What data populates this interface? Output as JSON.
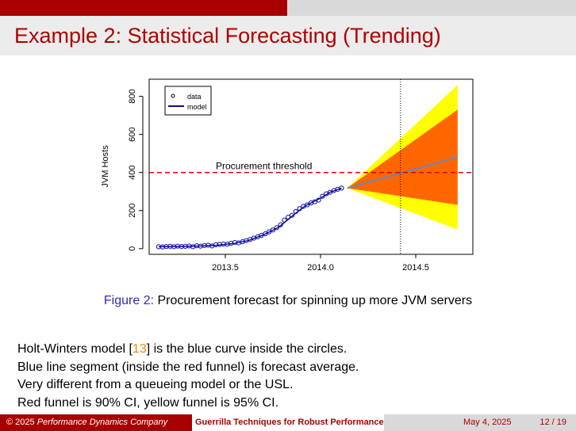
{
  "title": "Example 2: Statistical Forecasting (Trending)",
  "figure": {
    "label": "Figure 2:",
    "caption": "Procurement forecast for spinning up more JVM servers"
  },
  "chart_data": {
    "type": "line",
    "ylabel": "JVM Hosts",
    "xlabel": "",
    "xlim": [
      2013.1,
      2014.8
    ],
    "ylim": [
      -30,
      890
    ],
    "x_ticks": [
      2013.5,
      2014.0,
      2014.5
    ],
    "x_tick_labels": [
      "2013.5",
      "2014.0",
      "2014.5"
    ],
    "y_ticks": [
      0,
      200,
      400,
      600,
      800
    ],
    "y_tick_labels": [
      "0",
      "200",
      "400",
      "600",
      "800"
    ],
    "legend": {
      "position": "top-left",
      "entries": [
        "data",
        "model"
      ]
    },
    "threshold": {
      "value": 400,
      "label": "Procurement threshold",
      "color": "#e00000"
    },
    "vline_x": 2014.42,
    "series": [
      {
        "name": "data",
        "style": "points",
        "color": "#0a0aa0",
        "x": [
          2013.15,
          2013.17,
          2013.19,
          2013.21,
          2013.23,
          2013.25,
          2013.27,
          2013.29,
          2013.31,
          2013.33,
          2013.35,
          2013.37,
          2013.39,
          2013.41,
          2013.43,
          2013.45,
          2013.47,
          2013.49,
          2013.51,
          2013.53,
          2013.55,
          2013.57,
          2013.59,
          2013.61,
          2013.63,
          2013.65,
          2013.67,
          2013.69,
          2013.71,
          2013.73,
          2013.75,
          2013.77,
          2013.79,
          2013.81,
          2013.83,
          2013.85,
          2013.87,
          2013.89,
          2013.91,
          2013.93,
          2013.95,
          2013.97,
          2013.99,
          2014.01,
          2014.03,
          2014.05,
          2014.07,
          2014.09,
          2014.11
        ],
        "y": [
          10,
          9,
          11,
          12,
          10,
          13,
          11,
          12,
          14,
          10,
          15,
          13,
          16,
          18,
          14,
          20,
          22,
          24,
          23,
          28,
          32,
          30,
          36,
          42,
          48,
          55,
          62,
          70,
          78,
          88,
          98,
          110,
          125,
          150,
          165,
          175,
          195,
          210,
          222,
          230,
          240,
          246,
          255,
          275,
          288,
          296,
          305,
          312,
          318
        ]
      },
      {
        "name": "model",
        "style": "line",
        "color": "#0a0aa0",
        "x": [
          2013.15,
          2013.25,
          2013.35,
          2013.45,
          2013.55,
          2013.62,
          2013.7,
          2013.78,
          2013.85,
          2013.92,
          2014.0,
          2014.05,
          2014.11
        ],
        "y": [
          10,
          11,
          13,
          17,
          28,
          42,
          72,
          112,
          170,
          225,
          265,
          296,
          318
        ]
      }
    ],
    "forecast": {
      "x": [
        2014.14,
        2014.72
      ],
      "mean": [
        318,
        480
      ],
      "ci90_lower": [
        318,
        230
      ],
      "ci90_upper": [
        318,
        730
      ],
      "ci95_lower": [
        318,
        100
      ],
      "ci95_upper": [
        318,
        860
      ],
      "mean_color": "#6e84b8",
      "ci90_color": "#ff6600",
      "ci95_color": "#ffff00"
    }
  },
  "body_lines": [
    {
      "before": "Holt-Winters model [",
      "ref": "13",
      "after": "] is the blue curve inside the circles."
    },
    {
      "text": "Blue line segment (inside the red funnel) is forecast average."
    },
    {
      "text": "Very different from a queueing model or the USL."
    },
    {
      "text": "Red funnel is 90% CI, yellow funnel is 95% CI."
    }
  ],
  "footer": {
    "copyright": "© 2025",
    "company": "Performance Dynamics Company",
    "talk": "Guerrilla Techniques for Robust Performance",
    "date": "May 4, 2025",
    "page": "12 / 19"
  }
}
